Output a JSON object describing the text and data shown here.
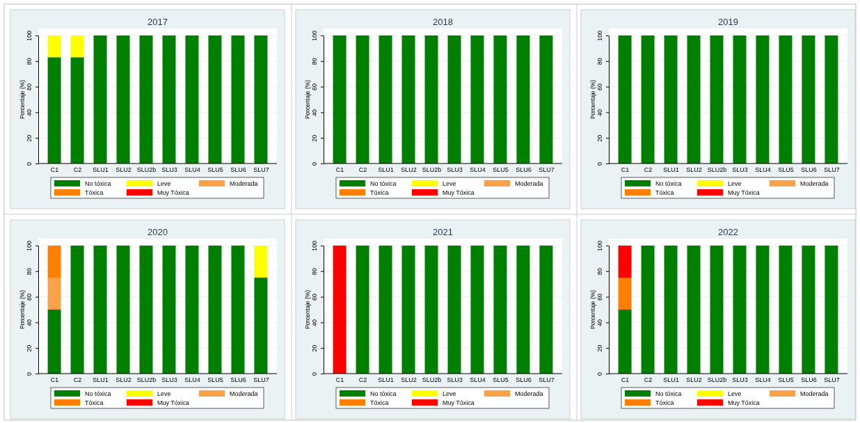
{
  "chart_data": [
    {
      "type": "bar",
      "stacked": true,
      "title": "2017",
      "ylabel": "Porcentaje (%)",
      "categories": [
        "C1",
        "C2",
        "SLU1",
        "SLU2",
        "SLU2b",
        "SLU3",
        "SLU4",
        "SLU5",
        "SLU6",
        "SLU7"
      ],
      "ylim": [
        0,
        100
      ],
      "yticks": [
        0,
        20,
        40,
        60,
        80,
        100
      ],
      "grid": "y",
      "legend": "bottom",
      "series": [
        {
          "name": "No tóxica",
          "color": "#007f00",
          "values": [
            83,
            83,
            100,
            100,
            100,
            100,
            100,
            100,
            100,
            100
          ]
        },
        {
          "name": "Leve",
          "color": "#ffff00",
          "values": [
            17,
            17,
            0,
            0,
            0,
            0,
            0,
            0,
            0,
            0
          ]
        },
        {
          "name": "Moderada",
          "color": "#f9a24a",
          "values": [
            0,
            0,
            0,
            0,
            0,
            0,
            0,
            0,
            0,
            0
          ]
        },
        {
          "name": "Tóxica",
          "color": "#ff7f00",
          "values": [
            0,
            0,
            0,
            0,
            0,
            0,
            0,
            0,
            0,
            0
          ]
        },
        {
          "name": "Muy Tóxica",
          "color": "#ff0000",
          "values": [
            0,
            0,
            0,
            0,
            0,
            0,
            0,
            0,
            0,
            0
          ]
        }
      ]
    },
    {
      "type": "bar",
      "stacked": true,
      "title": "2018",
      "ylabel": "Porcentaje (%)",
      "categories": [
        "C1",
        "C2",
        "SLU1",
        "SLU2",
        "SLU2b",
        "SLU3",
        "SLU4",
        "SLU5",
        "SLU6",
        "SLU7"
      ],
      "ylim": [
        0,
        100
      ],
      "yticks": [
        0,
        20,
        40,
        60,
        80,
        100
      ],
      "grid": "y",
      "legend": "bottom",
      "series": [
        {
          "name": "No tóxica",
          "color": "#007f00",
          "values": [
            100,
            100,
            100,
            100,
            100,
            100,
            100,
            100,
            100,
            100
          ]
        },
        {
          "name": "Leve",
          "color": "#ffff00",
          "values": [
            0,
            0,
            0,
            0,
            0,
            0,
            0,
            0,
            0,
            0
          ]
        },
        {
          "name": "Moderada",
          "color": "#f9a24a",
          "values": [
            0,
            0,
            0,
            0,
            0,
            0,
            0,
            0,
            0,
            0
          ]
        },
        {
          "name": "Tóxica",
          "color": "#ff7f00",
          "values": [
            0,
            0,
            0,
            0,
            0,
            0,
            0,
            0,
            0,
            0
          ]
        },
        {
          "name": "Muy Tóxica",
          "color": "#ff0000",
          "values": [
            0,
            0,
            0,
            0,
            0,
            0,
            0,
            0,
            0,
            0
          ]
        }
      ]
    },
    {
      "type": "bar",
      "stacked": true,
      "title": "2019",
      "ylabel": "Porcentaje (%)",
      "categories": [
        "C1",
        "C2",
        "SLU1",
        "SLU2",
        "SLU2b",
        "SLU3",
        "SLU4",
        "SLU5",
        "SLU6",
        "SLU7"
      ],
      "ylim": [
        0,
        100
      ],
      "yticks": [
        0,
        20,
        40,
        60,
        80,
        100
      ],
      "grid": "y",
      "legend": "bottom",
      "series": [
        {
          "name": "No tóxica",
          "color": "#007f00",
          "values": [
            100,
            100,
            100,
            100,
            100,
            100,
            100,
            100,
            100,
            100
          ]
        },
        {
          "name": "Leve",
          "color": "#ffff00",
          "values": [
            0,
            0,
            0,
            0,
            0,
            0,
            0,
            0,
            0,
            0
          ]
        },
        {
          "name": "Moderada",
          "color": "#f9a24a",
          "values": [
            0,
            0,
            0,
            0,
            0,
            0,
            0,
            0,
            0,
            0
          ]
        },
        {
          "name": "Tóxica",
          "color": "#ff7f00",
          "values": [
            0,
            0,
            0,
            0,
            0,
            0,
            0,
            0,
            0,
            0
          ]
        },
        {
          "name": "Muy Tóxica",
          "color": "#ff0000",
          "values": [
            0,
            0,
            0,
            0,
            0,
            0,
            0,
            0,
            0,
            0
          ]
        }
      ]
    },
    {
      "type": "bar",
      "stacked": true,
      "title": "2020",
      "ylabel": "Porcentaje (%)",
      "categories": [
        "C1",
        "C2",
        "SLU1",
        "SLU2",
        "SLU2b",
        "SLU3",
        "SLU4",
        "SLU5",
        "SLU6",
        "SLU7"
      ],
      "ylim": [
        0,
        100
      ],
      "yticks": [
        0,
        20,
        40,
        60,
        80,
        100
      ],
      "grid": "y",
      "legend": "bottom",
      "series": [
        {
          "name": "No tóxica",
          "color": "#007f00",
          "values": [
            50,
            100,
            100,
            100,
            100,
            100,
            100,
            100,
            100,
            75
          ]
        },
        {
          "name": "Leve",
          "color": "#ffff00",
          "values": [
            0,
            0,
            0,
            0,
            0,
            0,
            0,
            0,
            0,
            25
          ]
        },
        {
          "name": "Moderada",
          "color": "#f9a24a",
          "values": [
            25,
            0,
            0,
            0,
            0,
            0,
            0,
            0,
            0,
            0
          ]
        },
        {
          "name": "Tóxica",
          "color": "#ff7f00",
          "values": [
            25,
            0,
            0,
            0,
            0,
            0,
            0,
            0,
            0,
            0
          ]
        },
        {
          "name": "Muy Tóxica",
          "color": "#ff0000",
          "values": [
            0,
            0,
            0,
            0,
            0,
            0,
            0,
            0,
            0,
            0
          ]
        }
      ]
    },
    {
      "type": "bar",
      "stacked": true,
      "title": "2021",
      "ylabel": "Porcentaje (%)",
      "categories": [
        "C1",
        "C2",
        "SLU1",
        "SLU2",
        "SLU2b",
        "SLU3",
        "SLU4",
        "SLU5",
        "SLU6",
        "SLU7"
      ],
      "ylim": [
        0,
        100
      ],
      "yticks": [
        0,
        20,
        40,
        60,
        80,
        100
      ],
      "grid": "y",
      "legend": "bottom",
      "series": [
        {
          "name": "No tóxica",
          "color": "#007f00",
          "values": [
            0,
            100,
            100,
            100,
            100,
            100,
            100,
            100,
            100,
            100
          ]
        },
        {
          "name": "Leve",
          "color": "#ffff00",
          "values": [
            0,
            0,
            0,
            0,
            0,
            0,
            0,
            0,
            0,
            0
          ]
        },
        {
          "name": "Moderada",
          "color": "#f9a24a",
          "values": [
            0,
            0,
            0,
            0,
            0,
            0,
            0,
            0,
            0,
            0
          ]
        },
        {
          "name": "Tóxica",
          "color": "#ff7f00",
          "values": [
            0,
            0,
            0,
            0,
            0,
            0,
            0,
            0,
            0,
            0
          ]
        },
        {
          "name": "Muy Tóxica",
          "color": "#ff0000",
          "values": [
            100,
            0,
            0,
            0,
            0,
            0,
            0,
            0,
            0,
            0
          ]
        }
      ]
    },
    {
      "type": "bar",
      "stacked": true,
      "title": "2022",
      "ylabel": "Porcentaje (%)",
      "categories": [
        "C1",
        "C2",
        "SLU1",
        "SLU2",
        "SLU2b",
        "SLU3",
        "SLU4",
        "SLU5",
        "SLU6",
        "SLU7"
      ],
      "ylim": [
        0,
        100
      ],
      "yticks": [
        0,
        20,
        40,
        60,
        80,
        100
      ],
      "grid": "y",
      "legend": "bottom",
      "series": [
        {
          "name": "No tóxica",
          "color": "#007f00",
          "values": [
            50,
            100,
            100,
            100,
            100,
            100,
            100,
            100,
            100,
            100
          ]
        },
        {
          "name": "Leve",
          "color": "#ffff00",
          "values": [
            0,
            0,
            0,
            0,
            0,
            0,
            0,
            0,
            0,
            0
          ]
        },
        {
          "name": "Moderada",
          "color": "#f9a24a",
          "values": [
            0,
            0,
            0,
            0,
            0,
            0,
            0,
            0,
            0,
            0
          ]
        },
        {
          "name": "Tóxica",
          "color": "#ff7f00",
          "values": [
            25,
            0,
            0,
            0,
            0,
            0,
            0,
            0,
            0,
            0
          ]
        },
        {
          "name": "Muy Tóxica",
          "color": "#ff0000",
          "values": [
            25,
            0,
            0,
            0,
            0,
            0,
            0,
            0,
            0,
            0
          ]
        }
      ]
    }
  ]
}
